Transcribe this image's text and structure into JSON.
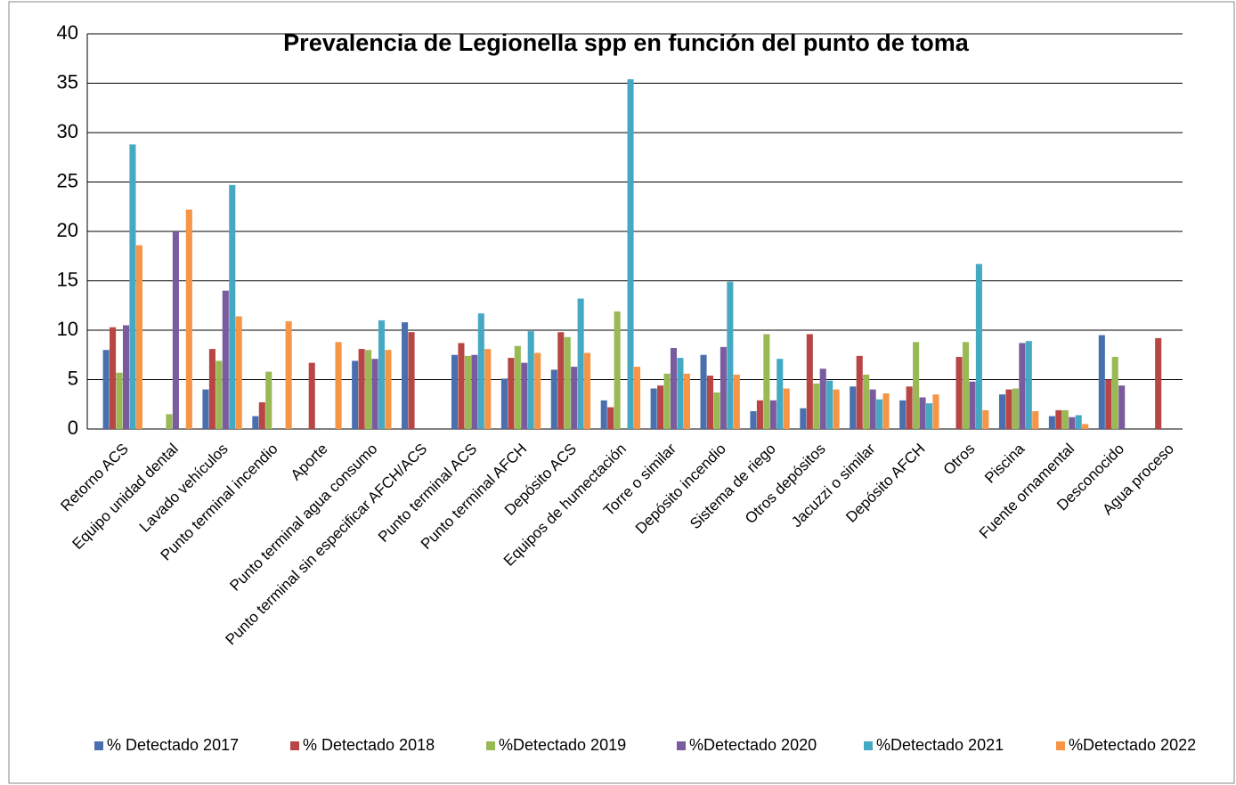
{
  "chart_data": {
    "type": "bar",
    "title": "Prevalencia de Legionella spp en función del punto de toma",
    "categories": [
      "Retorno ACS",
      "Equipo unidad dental",
      "Lavado vehículos",
      "Punto terminal incendio",
      "Aporte",
      "Punto terminal agua consumo",
      "Punto terminal sin especificar AFCH/ACS",
      "Punto terminal ACS",
      "Punto terminal AFCH",
      "Depósito ACS",
      "Equipos de humectación",
      "Torre o similar",
      "Depósito incendio",
      "Sistema de riego",
      "Otros depósitos",
      "Jacuzzi o similar",
      "Depósito AFCH",
      "Otros",
      "Piscina",
      "Fuente ornamental",
      "Desconocido",
      "Agua proceso"
    ],
    "series": [
      {
        "name": "% Detectado 2017",
        "color": "#4a6fae",
        "values": [
          8.0,
          0,
          4.0,
          1.3,
          0,
          6.9,
          10.8,
          7.5,
          5.1,
          6.0,
          2.9,
          4.1,
          7.5,
          1.8,
          2.1,
          4.3,
          2.9,
          0,
          3.5,
          1.3,
          9.5,
          0
        ]
      },
      {
        "name": "% Detectado 2018",
        "color": "#b84644",
        "values": [
          10.3,
          0,
          8.1,
          2.7,
          6.7,
          8.1,
          9.8,
          8.7,
          7.2,
          9.8,
          2.2,
          4.4,
          5.4,
          2.9,
          9.6,
          7.4,
          4.3,
          7.3,
          4.0,
          1.9,
          5.0,
          9.2
        ]
      },
      {
        "name": "%Detectado 2019",
        "color": "#98b954",
        "values": [
          5.7,
          1.5,
          6.9,
          5.8,
          0,
          8.0,
          0,
          7.4,
          8.4,
          9.3,
          11.9,
          5.6,
          3.7,
          9.6,
          4.6,
          5.5,
          8.8,
          8.8,
          4.1,
          1.9,
          7.3,
          0
        ]
      },
      {
        "name": "%Detectado 2020",
        "color": "#7a5b9e",
        "values": [
          10.5,
          20.0,
          14.0,
          0,
          0,
          7.1,
          0,
          7.5,
          6.7,
          6.3,
          0,
          8.2,
          8.3,
          2.9,
          6.1,
          4.0,
          3.2,
          4.8,
          8.7,
          1.2,
          4.4,
          0
        ]
      },
      {
        "name": "%Detectado 2021",
        "color": "#46a9c4",
        "values": [
          28.8,
          0,
          24.7,
          0,
          0,
          11.0,
          0,
          11.7,
          9.9,
          13.2,
          35.4,
          7.2,
          14.9,
          7.1,
          4.9,
          3.0,
          2.6,
          16.7,
          8.9,
          1.4,
          0,
          0
        ]
      },
      {
        "name": "%Detectado 2022",
        "color": "#f59545",
        "values": [
          18.6,
          22.2,
          11.4,
          10.9,
          8.8,
          8.0,
          0,
          8.1,
          7.7,
          7.7,
          6.3,
          5.6,
          5.5,
          4.1,
          4.0,
          3.6,
          3.5,
          1.9,
          1.8,
          0.5,
          0,
          0
        ]
      }
    ],
    "ylim": [
      0,
      40
    ],
    "yticks": [
      0,
      5,
      10,
      15,
      20,
      25,
      30,
      35,
      40
    ],
    "grid": true,
    "legend": "bottom"
  }
}
